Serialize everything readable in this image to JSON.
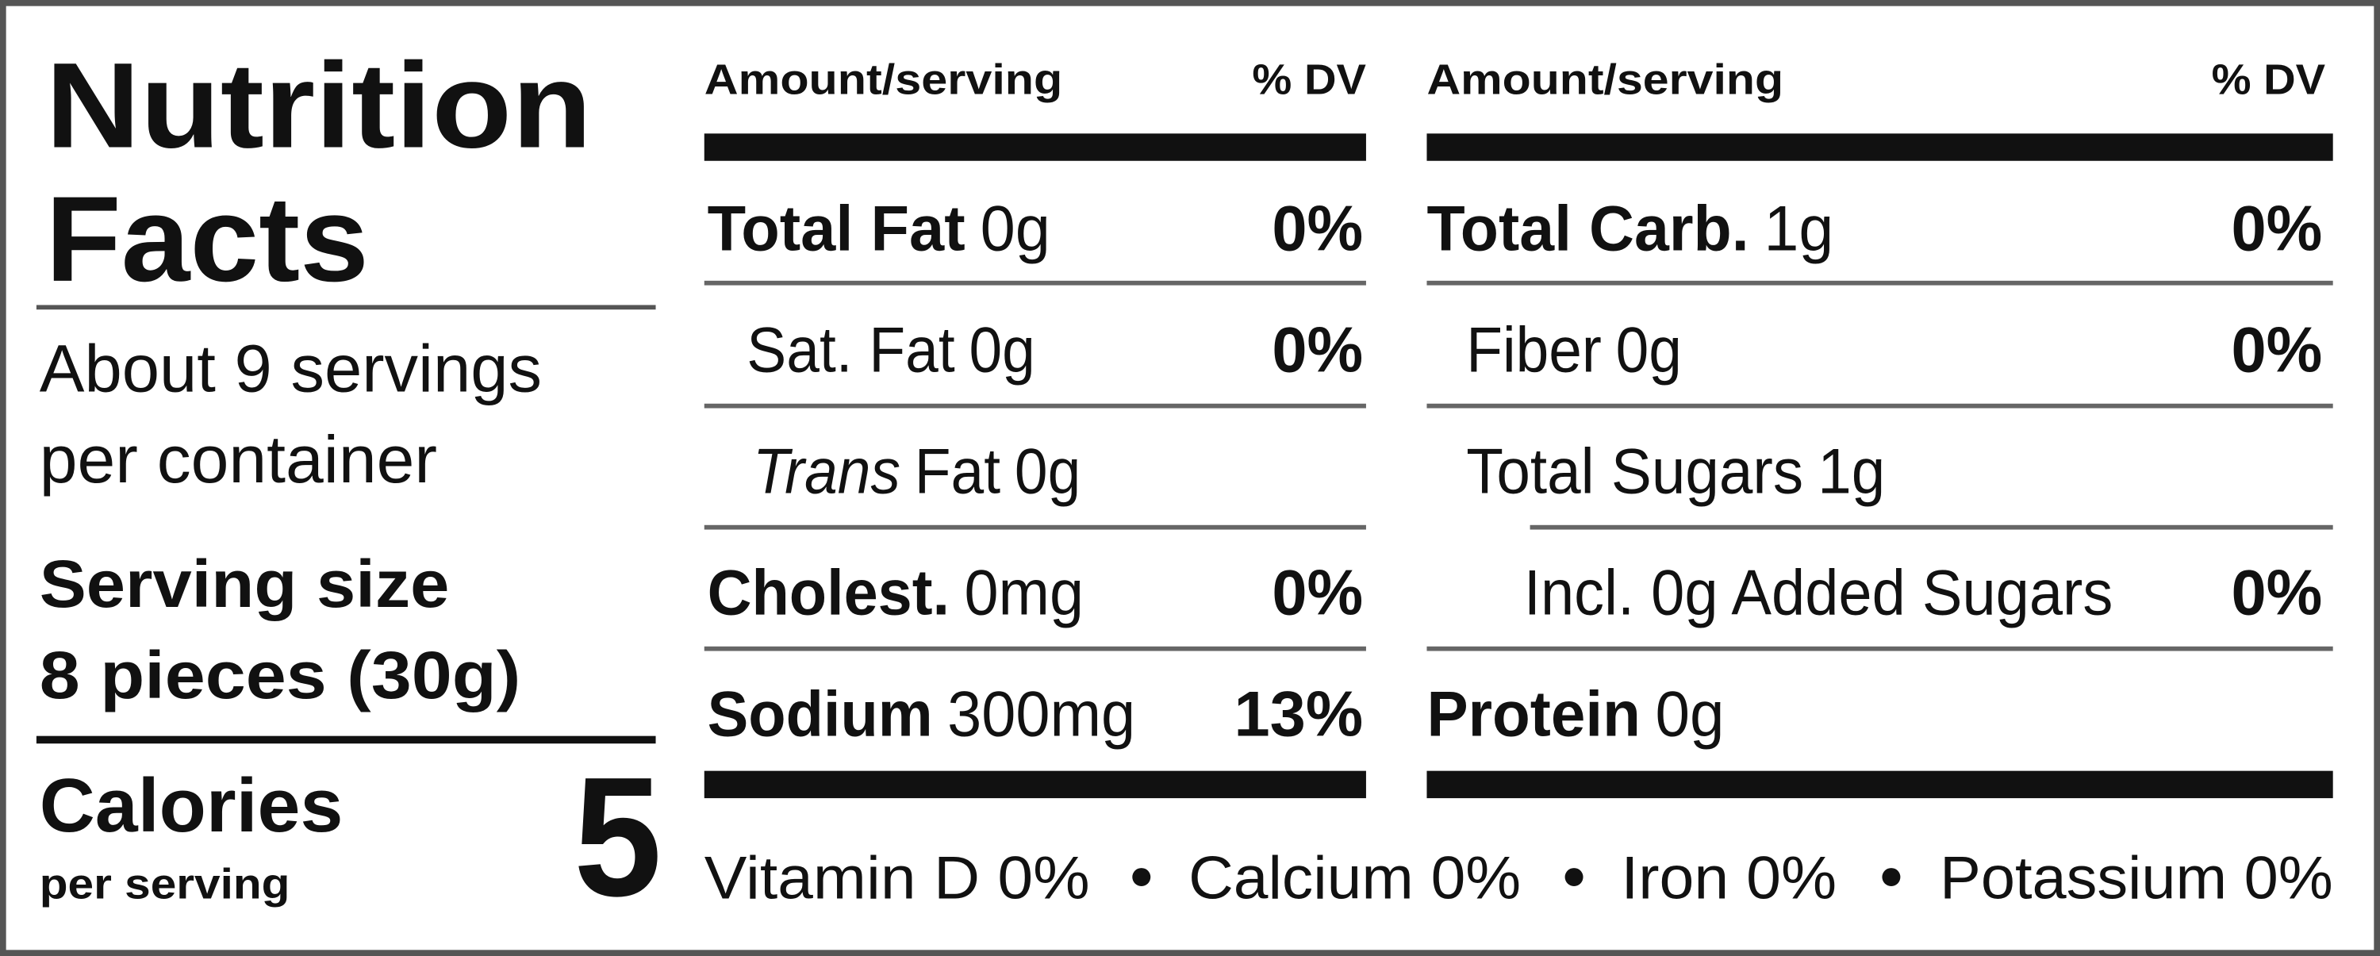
{
  "header": {
    "title_line1": "Nutrition",
    "title_line2": "Facts"
  },
  "servings": {
    "line1": "About 9 servings",
    "line2": "per container"
  },
  "serving_size": {
    "label": "Serving size",
    "amount": "8 pieces (30g)"
  },
  "calories": {
    "label": "Calories",
    "sublabel": "per serving",
    "value": 5
  },
  "left_table": {
    "header": {
      "amount": "Amount/serving",
      "dv": "% DV"
    },
    "rows": [
      {
        "name": "Total Fat",
        "amount": "0g",
        "dv": "0%"
      },
      {
        "name": "Sat. Fat",
        "amount": "0g",
        "dv": "0%"
      },
      {
        "name_italic": "Trans",
        "name": "Fat",
        "amount": "0g"
      },
      {
        "name": "Cholest.",
        "amount": "0mg",
        "dv": "0%"
      },
      {
        "name": "Sodium",
        "amount": "300mg",
        "dv": "13%"
      }
    ]
  },
  "right_table": {
    "header": {
      "amount": "Amount/serving",
      "dv": "% DV"
    },
    "rows": [
      {
        "name": "Total Carb.",
        "amount": "1g",
        "dv": "0%"
      },
      {
        "name": "Fiber",
        "amount": "0g",
        "dv": "0%"
      },
      {
        "name": "Total Sugars",
        "amount": "1g"
      },
      {
        "name": "Incl. 0g Added Sugars",
        "dv": "0%"
      },
      {
        "name": "Protein",
        "amount": "0g"
      }
    ]
  },
  "footer": [
    "Vitamin D 0%",
    "Calcium 0%",
    "Iron 0%",
    "Potassium 0%"
  ]
}
